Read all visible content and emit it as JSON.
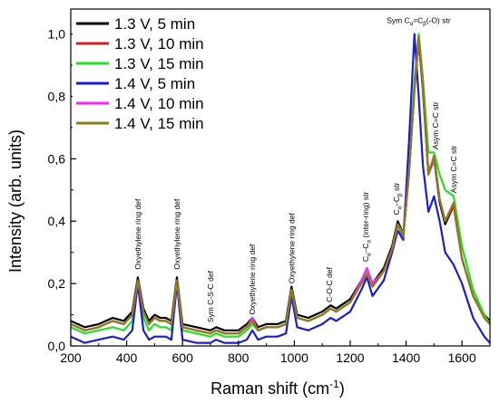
{
  "chart_data": {
    "type": "line",
    "xlabel": "Raman shift (cm",
    "xlabel_sup": "-1",
    "xlabel_tail": ")",
    "ylabel": "Intensity (arb. units)",
    "xlim": [
      200,
      1700
    ],
    "ylim": [
      0,
      1.08
    ],
    "x_ticks": [
      200,
      400,
      600,
      800,
      1000,
      1200,
      1400,
      1600
    ],
    "y_ticks": [
      {
        "v": 0.0,
        "label": "0,0"
      },
      {
        "v": 0.2,
        "label": "0,2"
      },
      {
        "v": 0.4,
        "label": "0,4"
      },
      {
        "v": 0.6,
        "label": "0,6"
      },
      {
        "v": 0.8,
        "label": "0,8"
      },
      {
        "v": 1.0,
        "label": "1,0"
      }
    ],
    "grid": false,
    "legend_position": "top-left",
    "x": [
      200,
      250,
      300,
      350,
      390,
      420,
      440,
      460,
      480,
      500,
      520,
      540,
      560,
      580,
      600,
      650,
      700,
      720,
      750,
      800,
      830,
      850,
      870,
      900,
      940,
      970,
      990,
      1010,
      1050,
      1100,
      1130,
      1150,
      1200,
      1240,
      1260,
      1280,
      1320,
      1350,
      1370,
      1390,
      1410,
      1430,
      1445,
      1460,
      1480,
      1500,
      1520,
      1540,
      1570,
      1600,
      1640,
      1680,
      1700
    ],
    "series": [
      {
        "name": "1.3 V, 5 min",
        "color": "#000000",
        "values": [
          0.08,
          0.06,
          0.07,
          0.09,
          0.08,
          0.11,
          0.22,
          0.12,
          0.08,
          0.1,
          0.09,
          0.09,
          0.08,
          0.22,
          0.07,
          0.06,
          0.05,
          0.06,
          0.05,
          0.05,
          0.07,
          0.09,
          0.06,
          0.07,
          0.07,
          0.08,
          0.19,
          0.1,
          0.09,
          0.11,
          0.13,
          0.12,
          0.15,
          0.21,
          0.24,
          0.2,
          0.25,
          0.32,
          0.4,
          0.36,
          0.56,
          0.83,
          0.98,
          0.82,
          0.55,
          0.6,
          0.46,
          0.39,
          0.45,
          0.28,
          0.16,
          0.1,
          0.08
        ]
      },
      {
        "name": "1.3 V, 10 min",
        "color": "#d81b1b",
        "values": [
          0.07,
          0.05,
          0.06,
          0.08,
          0.07,
          0.1,
          0.21,
          0.11,
          0.07,
          0.09,
          0.08,
          0.08,
          0.07,
          0.21,
          0.06,
          0.05,
          0.04,
          0.05,
          0.04,
          0.04,
          0.06,
          0.08,
          0.05,
          0.06,
          0.06,
          0.07,
          0.18,
          0.09,
          0.08,
          0.1,
          0.12,
          0.11,
          0.14,
          0.2,
          0.23,
          0.19,
          0.24,
          0.31,
          0.39,
          0.35,
          0.55,
          0.82,
          0.98,
          0.83,
          0.55,
          0.61,
          0.47,
          0.4,
          0.45,
          0.28,
          0.16,
          0.09,
          0.07
        ]
      },
      {
        "name": "1.3 V, 15 min",
        "color": "#22e022",
        "values": [
          0.06,
          0.04,
          0.05,
          0.06,
          0.05,
          0.08,
          0.2,
          0.09,
          0.05,
          0.07,
          0.06,
          0.06,
          0.05,
          0.2,
          0.05,
          0.04,
          0.03,
          0.04,
          0.03,
          0.03,
          0.05,
          0.07,
          0.05,
          0.06,
          0.06,
          0.07,
          0.18,
          0.09,
          0.08,
          0.1,
          0.12,
          0.11,
          0.14,
          0.2,
          0.24,
          0.2,
          0.24,
          0.31,
          0.39,
          0.36,
          0.56,
          0.85,
          1.0,
          0.86,
          0.62,
          0.62,
          0.55,
          0.5,
          0.48,
          0.32,
          0.18,
          0.1,
          0.07
        ]
      },
      {
        "name": "1.4 V, 5 min",
        "color": "#1c1cd0",
        "values": [
          0.03,
          0.01,
          0.02,
          0.03,
          0.02,
          0.05,
          0.2,
          0.05,
          0.02,
          0.03,
          0.03,
          0.03,
          0.02,
          0.2,
          0.02,
          0.01,
          0.01,
          0.02,
          0.01,
          0.01,
          0.02,
          0.05,
          0.02,
          0.03,
          0.03,
          0.04,
          0.16,
          0.06,
          0.05,
          0.07,
          0.09,
          0.08,
          0.11,
          0.18,
          0.22,
          0.16,
          0.21,
          0.3,
          0.37,
          0.34,
          0.65,
          1.0,
          0.8,
          0.58,
          0.43,
          0.48,
          0.4,
          0.3,
          0.26,
          0.2,
          0.09,
          0.03,
          0.01
        ]
      },
      {
        "name": "1.4 V, 10 min",
        "color": "#ff22ff",
        "values": [
          0.07,
          0.05,
          0.06,
          0.08,
          0.07,
          0.1,
          0.21,
          0.11,
          0.07,
          0.09,
          0.08,
          0.08,
          0.07,
          0.21,
          0.06,
          0.05,
          0.04,
          0.05,
          0.04,
          0.04,
          0.06,
          0.09,
          0.05,
          0.06,
          0.06,
          0.07,
          0.18,
          0.09,
          0.08,
          0.1,
          0.12,
          0.11,
          0.14,
          0.21,
          0.25,
          0.2,
          0.24,
          0.31,
          0.39,
          0.35,
          0.55,
          0.82,
          0.99,
          0.84,
          0.56,
          0.6,
          0.47,
          0.4,
          0.46,
          0.28,
          0.16,
          0.09,
          0.07
        ]
      },
      {
        "name": "1.4 V, 15 min",
        "color": "#8b7d1a",
        "values": [
          0.07,
          0.05,
          0.06,
          0.08,
          0.07,
          0.1,
          0.21,
          0.11,
          0.07,
          0.09,
          0.08,
          0.08,
          0.07,
          0.21,
          0.06,
          0.05,
          0.04,
          0.05,
          0.04,
          0.04,
          0.06,
          0.08,
          0.05,
          0.06,
          0.06,
          0.07,
          0.18,
          0.09,
          0.08,
          0.1,
          0.12,
          0.11,
          0.14,
          0.2,
          0.23,
          0.19,
          0.24,
          0.31,
          0.39,
          0.35,
          0.55,
          0.82,
          0.99,
          0.83,
          0.55,
          0.61,
          0.47,
          0.4,
          0.46,
          0.28,
          0.16,
          0.09,
          0.07
        ]
      }
    ],
    "annotations": [
      {
        "text": "Oxyethylene ring def",
        "x": 440,
        "y": 0.245
      },
      {
        "text": "Oxyethylene ring def",
        "x": 580,
        "y": 0.245
      },
      {
        "text": "Sym C-S-C def",
        "x": 700,
        "y": 0.075
      },
      {
        "text": "Oxyethylene ring def",
        "x": 850,
        "y": 0.1
      },
      {
        "text": "Oxyethylene ring def",
        "x": 990,
        "y": 0.2
      },
      {
        "text": "C-O-C def",
        "x": 1125,
        "y": 0.14
      },
      {
        "text": "C",
        "sub": "α",
        "mid": "–C",
        "sub2": "α",
        "tail": " (inter-ring) str",
        "x": 1255,
        "y": 0.27
      },
      {
        "text": "C",
        "sub": "α",
        "mid": "–C",
        "sub2": "β",
        "tail": " str",
        "x": 1365,
        "y": 0.42
      },
      {
        "text": "Sym C",
        "sub": "α",
        "mid": "=C",
        "sub2": "β",
        "tail": "(-O) str",
        "x": 1445,
        "y": 1.035,
        "horizontal": true
      },
      {
        "text": "Asym C=C str",
        "x": 1505,
        "y": 0.63
      },
      {
        "text": "Asym C=C str",
        "x": 1570,
        "y": 0.49
      }
    ]
  }
}
